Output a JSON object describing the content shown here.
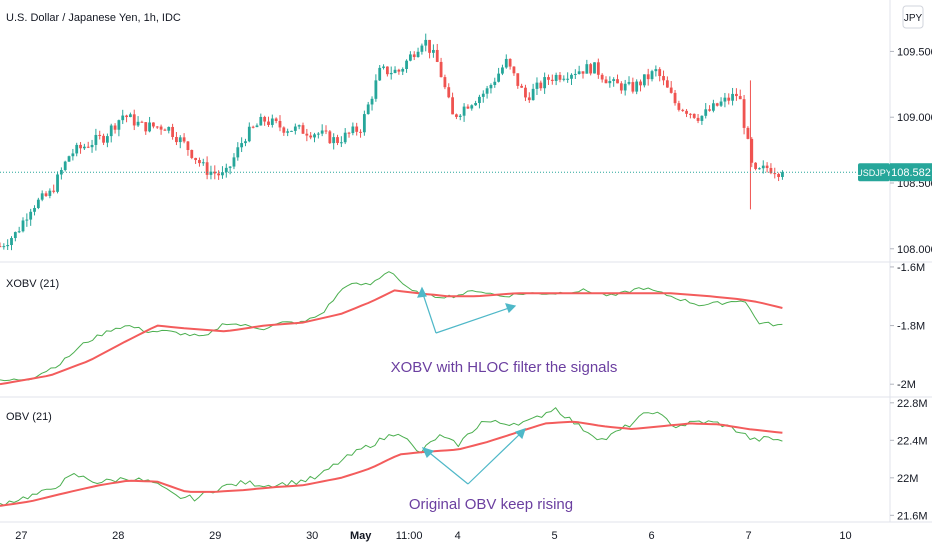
{
  "header": {
    "title": "U.S. Dollar / Japanese Yen, 1h, IDC",
    "currency_badge": "JPY"
  },
  "price_pane": {
    "y_ticks": [
      "109.500",
      "109.000",
      "108.500",
      "108.000"
    ],
    "y_tick_values": [
      109.5,
      109.0,
      108.5,
      108.0
    ],
    "ylim": [
      107.93,
      109.83
    ],
    "last_price": {
      "symbol": "USDJPY",
      "value": "108.582",
      "value_num": 108.582,
      "color": "#26a69a"
    }
  },
  "xobv_pane": {
    "title": "XOBV (21)",
    "y_ticks": [
      "-1.6M",
      "-1.8M",
      "-2M"
    ],
    "y_tick_values": [
      -1.6,
      -1.8,
      -2.0
    ],
    "ylim": [
      -2.03,
      -1.59
    ],
    "annotation": "XOBV with HLOC filter the signals"
  },
  "obv_pane": {
    "title": "OBV (21)",
    "y_ticks": [
      "22.8M",
      "22.4M",
      "22M",
      "21.6M"
    ],
    "y_tick_values": [
      22.8,
      22.4,
      22.0,
      21.6
    ],
    "ylim": [
      21.55,
      22.83
    ],
    "annotation": "Original OBV keep rising"
  },
  "x_axis": {
    "labels": [
      {
        "text": "27",
        "pos": 0.5,
        "bold": false
      },
      {
        "text": "28",
        "pos": 1.5,
        "bold": false
      },
      {
        "text": "29",
        "pos": 2.5,
        "bold": false
      },
      {
        "text": "30",
        "pos": 3.5,
        "bold": false
      },
      {
        "text": "May",
        "pos": 4.0,
        "bold": true
      },
      {
        "text": "11:00",
        "pos": 4.5,
        "bold": false
      },
      {
        "text": "4",
        "pos": 5.0,
        "bold": false
      },
      {
        "text": "5",
        "pos": 6.0,
        "bold": false
      },
      {
        "text": "6",
        "pos": 7.0,
        "bold": false
      },
      {
        "text": "7",
        "pos": 8.0,
        "bold": false
      },
      {
        "text": "10",
        "pos": 9.0,
        "bold": false
      }
    ],
    "range": [
      0.28,
      9.15
    ]
  },
  "colors": {
    "up": "#26a69a",
    "down": "#ef5350",
    "obv_line": "#4caf50",
    "ma_line": "#f35c5c",
    "annotation": "#6b3fa0",
    "arrow": "#4fb8c8"
  },
  "chart_data": [
    {
      "type": "candlestick",
      "title": "U.S. Dollar / Japanese Yen, 1h, IDC",
      "series": [
        {
          "name": "USDJPY",
          "keypoints_close": [
            [
              0.28,
              108.02
            ],
            [
              0.45,
              108.12
            ],
            [
              0.6,
              108.32
            ],
            [
              0.8,
              108.42
            ],
            [
              1.0,
              108.72
            ],
            [
              1.2,
              108.8
            ],
            [
              1.35,
              108.85
            ],
            [
              1.55,
              109.02
            ],
            [
              1.75,
              108.93
            ],
            [
              2.0,
              108.93
            ],
            [
              2.2,
              108.78
            ],
            [
              2.4,
              108.6
            ],
            [
              2.6,
              108.55
            ],
            [
              2.8,
              108.85
            ],
            [
              3.0,
              108.98
            ],
            [
              3.2,
              108.92
            ],
            [
              3.4,
              108.9
            ],
            [
              3.55,
              108.88
            ],
            [
              3.75,
              108.82
            ],
            [
              4.0,
              108.92
            ],
            [
              4.2,
              109.35
            ],
            [
              4.4,
              109.35
            ],
            [
              4.65,
              109.6
            ],
            [
              4.8,
              109.4
            ],
            [
              4.95,
              109.0
            ],
            [
              5.1,
              109.1
            ],
            [
              5.3,
              109.2
            ],
            [
              5.5,
              109.42
            ],
            [
              5.7,
              109.15
            ],
            [
              5.95,
              109.3
            ],
            [
              6.2,
              109.35
            ],
            [
              6.4,
              109.38
            ],
            [
              6.6,
              109.25
            ],
            [
              6.8,
              109.22
            ],
            [
              7.05,
              109.35
            ],
            [
              7.25,
              109.1
            ],
            [
              7.5,
              109.0
            ],
            [
              7.7,
              109.1
            ],
            [
              7.9,
              109.18
            ],
            [
              8.05,
              108.56
            ],
            [
              8.2,
              108.62
            ],
            [
              8.35,
              108.58
            ]
          ]
        }
      ],
      "last_value": 108.582,
      "ylim": [
        107.93,
        109.83
      ]
    },
    {
      "type": "line",
      "title": "XOBV (21)",
      "series": [
        {
          "values_xy": [
            [
              0.28,
              -1.99
            ],
            [
              0.6,
              -1.98
            ],
            [
              0.9,
              -1.93
            ],
            [
              1.15,
              -1.86
            ],
            [
              1.45,
              -1.81
            ],
            [
              1.6,
              -1.8
            ],
            [
              1.8,
              -1.82
            ],
            [
              2.0,
              -1.82
            ],
            [
              2.2,
              -1.83
            ],
            [
              2.4,
              -1.84
            ],
            [
              2.6,
              -1.79
            ],
            [
              2.8,
              -1.8
            ],
            [
              3.0,
              -1.81
            ],
            [
              3.2,
              -1.79
            ],
            [
              3.4,
              -1.79
            ],
            [
              3.6,
              -1.76
            ],
            [
              3.85,
              -1.66
            ],
            [
              4.1,
              -1.66
            ],
            [
              4.3,
              -1.61
            ],
            [
              4.5,
              -1.68
            ],
            [
              4.7,
              -1.7
            ],
            [
              4.95,
              -1.7
            ],
            [
              5.2,
              -1.68
            ],
            [
              5.45,
              -1.7
            ],
            [
              5.7,
              -1.69
            ],
            [
              6.0,
              -1.69
            ],
            [
              6.3,
              -1.68
            ],
            [
              6.6,
              -1.7
            ],
            [
              6.9,
              -1.67
            ],
            [
              7.2,
              -1.7
            ],
            [
              7.5,
              -1.73
            ],
            [
              7.8,
              -1.72
            ],
            [
              7.95,
              -1.71
            ],
            [
              8.1,
              -1.79
            ],
            [
              8.35,
              -1.8
            ]
          ]
        },
        {
          "values_xy": [
            [
              0.28,
              -2.0
            ],
            [
              0.8,
              -1.97
            ],
            [
              1.2,
              -1.92
            ],
            [
              1.6,
              -1.85
            ],
            [
              1.9,
              -1.8
            ],
            [
              2.2,
              -1.81
            ],
            [
              2.6,
              -1.82
            ],
            [
              3.0,
              -1.8
            ],
            [
              3.4,
              -1.79
            ],
            [
              3.8,
              -1.76
            ],
            [
              4.1,
              -1.72
            ],
            [
              4.35,
              -1.68
            ],
            [
              4.6,
              -1.69
            ],
            [
              4.9,
              -1.7
            ],
            [
              5.2,
              -1.7
            ],
            [
              5.6,
              -1.69
            ],
            [
              6.0,
              -1.69
            ],
            [
              6.4,
              -1.69
            ],
            [
              6.8,
              -1.69
            ],
            [
              7.2,
              -1.69
            ],
            [
              7.6,
              -1.7
            ],
            [
              7.9,
              -1.71
            ],
            [
              8.1,
              -1.72
            ],
            [
              8.35,
              -1.74
            ]
          ]
        }
      ],
      "ylim": [
        -2.03,
        -1.59
      ]
    },
    {
      "type": "line",
      "title": "OBV (21)",
      "series": [
        {
          "values_xy": [
            [
              0.28,
              21.72
            ],
            [
              0.5,
              21.78
            ],
            [
              0.75,
              21.85
            ],
            [
              1.05,
              22.03
            ],
            [
              1.3,
              21.95
            ],
            [
              1.6,
              22.0
            ],
            [
              1.85,
              21.95
            ],
            [
              2.1,
              21.8
            ],
            [
              2.3,
              21.78
            ],
            [
              2.55,
              21.9
            ],
            [
              2.8,
              21.95
            ],
            [
              3.05,
              21.92
            ],
            [
              3.3,
              21.95
            ],
            [
              3.55,
              22.0
            ],
            [
              3.75,
              22.15
            ],
            [
              4.0,
              22.3
            ],
            [
              4.2,
              22.4
            ],
            [
              4.4,
              22.5
            ],
            [
              4.6,
              22.25
            ],
            [
              4.8,
              22.45
            ],
            [
              5.0,
              22.35
            ],
            [
              5.25,
              22.6
            ],
            [
              5.5,
              22.58
            ],
            [
              5.75,
              22.6
            ],
            [
              6.0,
              22.75
            ],
            [
              6.25,
              22.55
            ],
            [
              6.5,
              22.4
            ],
            [
              6.75,
              22.55
            ],
            [
              7.0,
              22.72
            ],
            [
              7.25,
              22.55
            ],
            [
              7.5,
              22.6
            ],
            [
              7.7,
              22.58
            ],
            [
              7.9,
              22.5
            ],
            [
              8.05,
              22.4
            ],
            [
              8.2,
              22.42
            ],
            [
              8.35,
              22.4
            ]
          ]
        },
        {
          "values_xy": [
            [
              0.28,
              21.7
            ],
            [
              0.6,
              21.75
            ],
            [
              1.0,
              21.85
            ],
            [
              1.3,
              21.92
            ],
            [
              1.6,
              21.97
            ],
            [
              1.9,
              21.96
            ],
            [
              2.2,
              21.85
            ],
            [
              2.5,
              21.85
            ],
            [
              2.8,
              21.87
            ],
            [
              3.1,
              21.9
            ],
            [
              3.4,
              21.92
            ],
            [
              3.8,
              22.0
            ],
            [
              4.1,
              22.1
            ],
            [
              4.4,
              22.25
            ],
            [
              4.7,
              22.28
            ],
            [
              5.0,
              22.3
            ],
            [
              5.3,
              22.38
            ],
            [
              5.6,
              22.48
            ],
            [
              5.9,
              22.58
            ],
            [
              6.2,
              22.6
            ],
            [
              6.5,
              22.55
            ],
            [
              6.8,
              22.52
            ],
            [
              7.1,
              22.55
            ],
            [
              7.4,
              22.58
            ],
            [
              7.7,
              22.57
            ],
            [
              8.0,
              22.52
            ],
            [
              8.35,
              22.48
            ]
          ]
        }
      ],
      "ylim": [
        21.55,
        22.83
      ]
    }
  ]
}
